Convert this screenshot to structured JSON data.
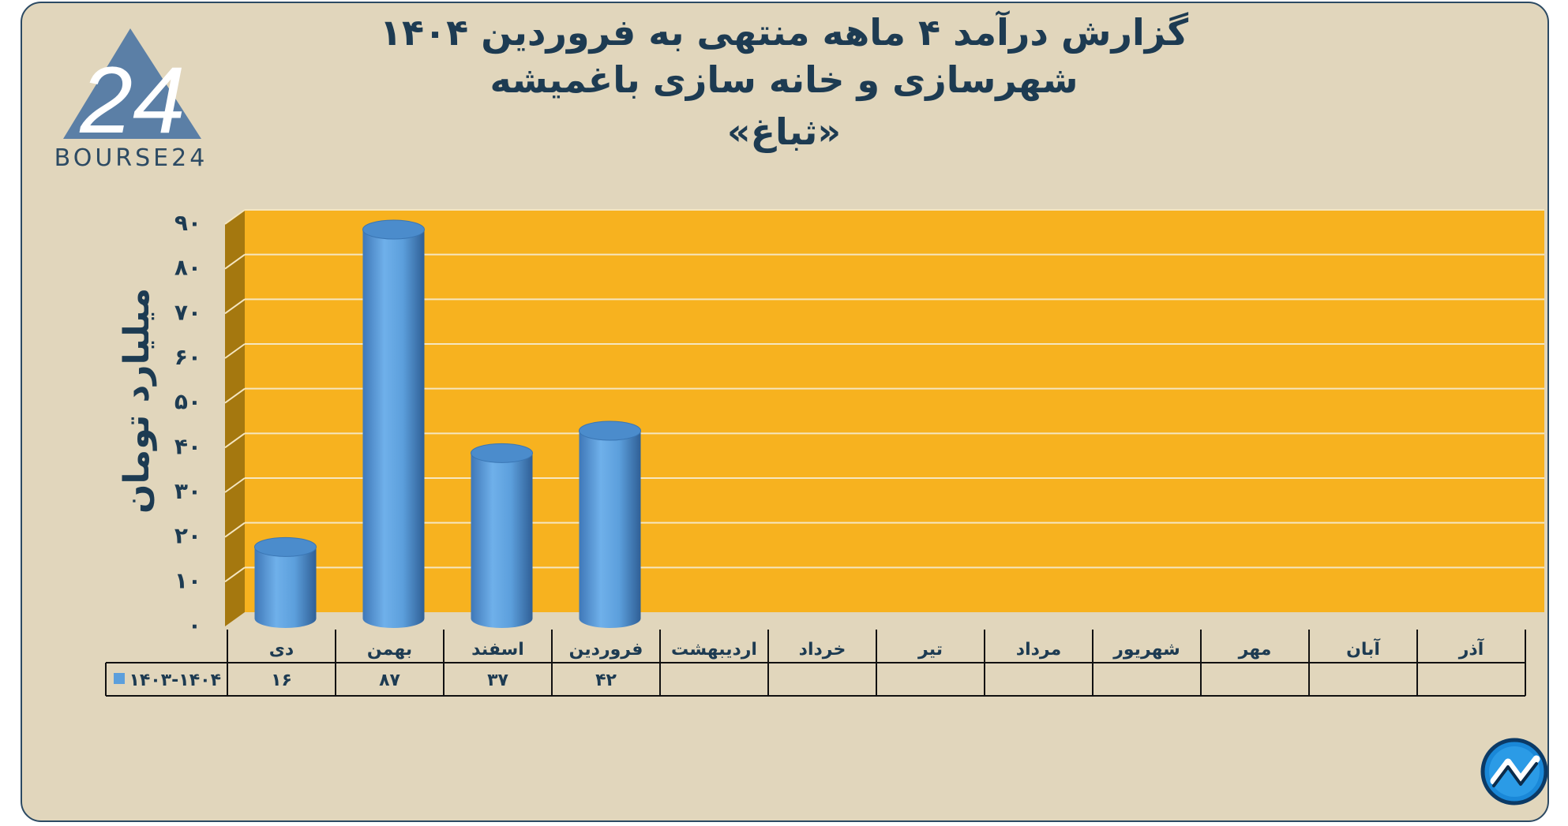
{
  "title_lines": [
    "گزارش  درآمد ۴ ماهه منتهی به فروردین ۱۴۰۴",
    "شهرسازی و خانه سازی باغمیشه",
    "«ثباغ»"
  ],
  "logo": {
    "text": "BOURSE24",
    "mark": "24",
    "icon": "bourse24-triangle-logo"
  },
  "corner_icon": "trend-circle-icon",
  "colors": {
    "background": "#e1d6bc",
    "plot": "#f7b21f",
    "wall": "#a5780f",
    "bar": "#5c9fdc",
    "text": "#1d3b52"
  },
  "chart_data": {
    "type": "bar",
    "title": "گزارش  درآمد ۴ ماهه منتهی به فروردین ۱۴۰۴ - شهرسازی و خانه سازی باغمیشه «ثباغ»",
    "ylabel": "میلیارد تومان",
    "ylim": [
      0,
      90
    ],
    "yticks": [
      "۰",
      "۱۰",
      "۲۰",
      "۳۰",
      "۴۰",
      "۵۰",
      "۶۰",
      "۷۰",
      "۸۰",
      "۹۰"
    ],
    "categories": [
      "دی",
      "بهمن",
      "اسفند",
      "فروردین",
      "اردیبهشت",
      "خرداد",
      "تیر",
      "مرداد",
      "شهریور",
      "مهر",
      "آبان",
      "آذر"
    ],
    "series": [
      {
        "name": "۱۴۰۳-۱۴۰۴",
        "values": [
          16,
          87,
          37,
          42,
          null,
          null,
          null,
          null,
          null,
          null,
          null,
          null
        ],
        "labels": [
          "۱۶",
          "۸۷",
          "۳۷",
          "۴۲",
          "",
          "",
          "",
          "",
          "",
          "",
          "",
          ""
        ]
      }
    ],
    "grid": true,
    "legend": "data-table"
  }
}
